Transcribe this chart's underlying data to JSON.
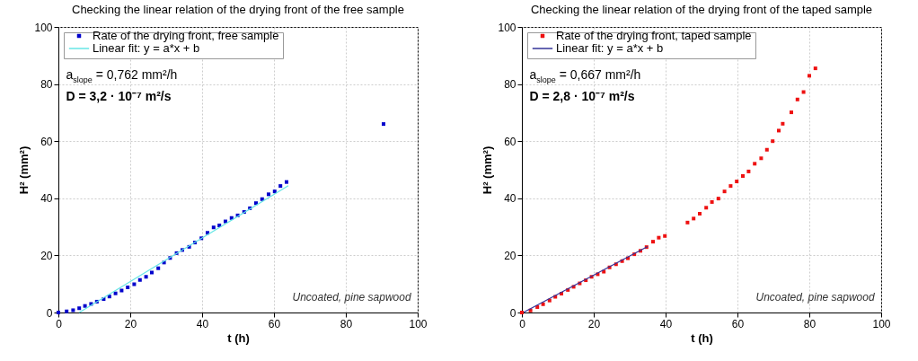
{
  "chart_data": [
    {
      "type": "scatter",
      "title": "Checking the linear relation of the drying front of the free sample",
      "xlabel": "t (h)",
      "ylabel": "H² (mm²)",
      "xlim": [
        0,
        100
      ],
      "ylim": [
        0,
        100
      ],
      "xticks": [
        0,
        20,
        40,
        60,
        80,
        100
      ],
      "yticks": [
        0,
        20,
        40,
        60,
        80,
        100
      ],
      "grid": true,
      "legend": "top left",
      "annotations": [
        "a$_{slope}$ = 0,762 mm²/h",
        "D = 3,2 · 10⁻⁷ m²/s",
        "Uncoated, pine sapwood"
      ],
      "series": [
        {
          "name": "Rate of the drying front, free sample",
          "type": "scatter",
          "marker": "square",
          "color": "#0000cc",
          "x": [
            0,
            2.3,
            4.1,
            5.8,
            7.4,
            9.1,
            10.7,
            12.6,
            14.2,
            15.9,
            17.6,
            19.3,
            21.1,
            22.7,
            24.4,
            26.0,
            27.8,
            29.4,
            31.1,
            32.9,
            34.5,
            36.4,
            38.0,
            39.8,
            41.5,
            43.2,
            44.8,
            46.5,
            48.2,
            49.9,
            51.7,
            53.3,
            55.0,
            56.7,
            58.5,
            60.2,
            61.8,
            63.5,
            90.5
          ],
          "values": [
            0,
            0.4,
            0.8,
            1.5,
            2.3,
            3.0,
            3.8,
            4.7,
            5.6,
            6.7,
            7.7,
            8.8,
            9.9,
            11.4,
            12.5,
            14.0,
            15.5,
            17.5,
            19.1,
            20.8,
            21.9,
            23.0,
            24.5,
            26.0,
            27.9,
            29.8,
            30.5,
            31.9,
            33.1,
            34.0,
            35.2,
            36.5,
            38.3,
            39.7,
            41.4,
            42.4,
            44.3,
            45.7,
            66
          ]
        },
        {
          "name": "Linear fit: y = a*x + b",
          "type": "line",
          "color": "#66e6e6",
          "x": [
            5.8,
            64
          ],
          "values": [
            0,
            44.4
          ]
        }
      ]
    },
    {
      "type": "scatter",
      "title": "Checking the linear relation of the drying front of the taped sample",
      "xlabel": "t (h)",
      "ylabel": "H² (mm²)",
      "xlim": [
        0,
        100
      ],
      "ylim": [
        0,
        100
      ],
      "xticks": [
        0,
        20,
        40,
        60,
        80,
        100
      ],
      "yticks": [
        0,
        20,
        40,
        60,
        80,
        100
      ],
      "grid": true,
      "legend": "top left",
      "annotations": [
        "a$_{slope}$ = 0,667 mm²/h",
        "D = 2,8 · 10⁻⁷ m²/s",
        "Uncoated, pine sapwood"
      ],
      "series": [
        {
          "name": "Rate of the drying front, taped sample",
          "type": "scatter",
          "marker": "square",
          "color": "#ee1111",
          "x": [
            0,
            2.4,
            4.3,
            5.9,
            7.7,
            9.3,
            11.0,
            12.8,
            14.4,
            16.1,
            17.8,
            19.4,
            21.1,
            22.8,
            24.4,
            26.2,
            27.9,
            29.5,
            31.3,
            33.0,
            34.7,
            36.5,
            38.1,
            39.8,
            46.1,
            47.8,
            49.5,
            51.3,
            52.9,
            54.7,
            56.4,
            58.1,
            59.8,
            61.5,
            63.1,
            64.8,
            66.6,
            68.2,
            69.8,
            71.5,
            72.6,
            75.0,
            76.7,
            78.4,
            80.0,
            81.7
          ],
          "values": [
            0,
            0.7,
            1.9,
            2.9,
            4.2,
            5.5,
            6.6,
            7.9,
            9.0,
            10.2,
            11.3,
            12.5,
            13.4,
            14.3,
            15.8,
            16.9,
            18.0,
            19.0,
            20.4,
            21.6,
            22.9,
            24.8,
            26.2,
            26.8,
            31.5,
            32.9,
            34.6,
            36.7,
            38.7,
            39.9,
            42.4,
            44.3,
            45.9,
            47.8,
            49.4,
            52.1,
            54.0,
            57.0,
            60.0,
            63.7,
            66.1,
            70.1,
            74.6,
            77.2,
            82.9,
            85.5
          ]
        },
        {
          "name": "Linear fit: y = a*x + b",
          "type": "line",
          "color": "#333399",
          "x": [
            0.5,
            35
          ],
          "values": [
            0.1,
            23.1
          ]
        }
      ]
    }
  ]
}
